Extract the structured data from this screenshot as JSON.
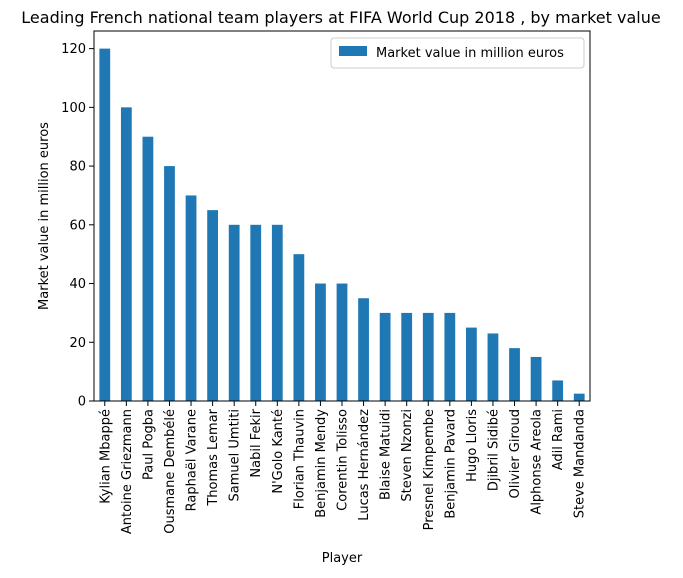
{
  "chart_data": {
    "type": "bar",
    "title": "Leading French national team players at FIFA World Cup 2018 , by market value",
    "xlabel": "Player",
    "ylabel": "Market value in million euros",
    "ylim": [
      0,
      126
    ],
    "yticks": [
      0,
      20,
      40,
      60,
      80,
      100,
      120
    ],
    "grid": false,
    "legend": {
      "position": "top-right"
    },
    "categories": [
      "Kylian Mbappé",
      "Antoine Griezmann",
      "Paul Pogba",
      "Ousmane Dembélé",
      "Raphaël Varane",
      "Thomas Lemar",
      "Samuel Umtiti",
      "Nabil Fekir",
      "N'Golo Kanté",
      "Florian Thauvin",
      "Benjamin Mendy",
      "Corentin Tolisso",
      "Lucas Hernández",
      "Blaise Matuidi",
      "Steven Nzonzi",
      "Presnel Kimpembe",
      "Benjamin Pavard",
      "Hugo Lloris",
      "Djibril Sidibé",
      "Olivier Giroud",
      "Alphonse Areola",
      "Adil Rami",
      "Steve Mandanda"
    ],
    "series": [
      {
        "name": "Market value in million euros",
        "color": "#1f77b4",
        "values": [
          120,
          100,
          90,
          80,
          70,
          65,
          60,
          60,
          60,
          50,
          40,
          40,
          35,
          30,
          30,
          30,
          30,
          25,
          23,
          18,
          15,
          7,
          2.5
        ]
      }
    ]
  }
}
